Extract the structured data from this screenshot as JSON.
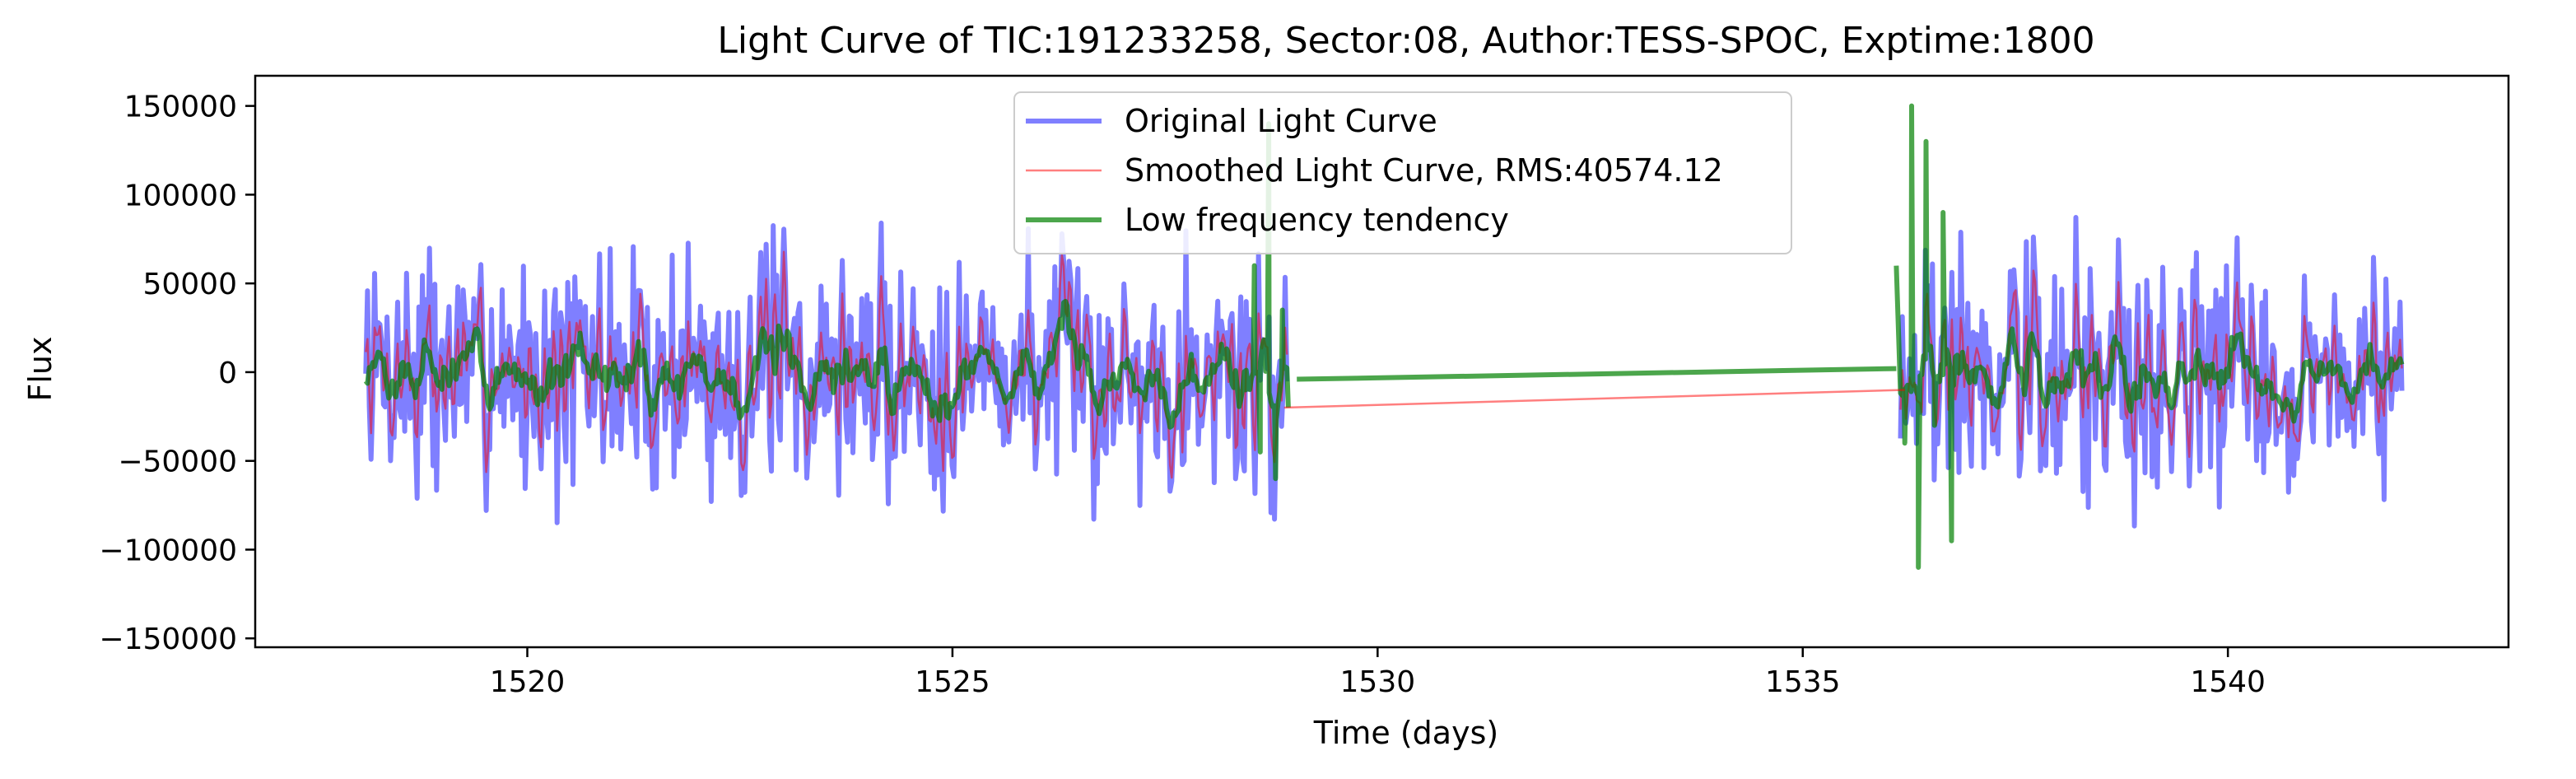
{
  "chart_data": {
    "type": "line",
    "title": "Light Curve of TIC:191233258, Sector:08, Author:TESS-SPOC, Exptime:1800",
    "xlabel": "Time (days)",
    "ylabel": "Flux",
    "xlim": [
      1516.8,
      1543.3
    ],
    "ylim": [
      -155000,
      167000
    ],
    "xticks": [
      1520,
      1525,
      1530,
      1535,
      1540
    ],
    "yticks": [
      -150000,
      -100000,
      -50000,
      0,
      50000,
      100000,
      150000
    ],
    "grid": false,
    "legend_position": "top-center",
    "gap": [
      1529.0,
      1536.1
    ],
    "segments": [
      {
        "start": 1518.1,
        "end": 1528.95,
        "seed": 7
      },
      {
        "start": 1536.15,
        "end": 1542.05,
        "seed": 19
      }
    ],
    "bridge": {
      "series_0_points": [
        [
          1528.9,
          -20000
        ],
        [
          1536.2,
          -10000
        ]
      ],
      "series_2_points": [
        [
          1529.05,
          -4000
        ],
        [
          1536.1,
          2000
        ]
      ]
    },
    "series": [
      {
        "name": "Original Light Curve",
        "color": "#0000ff",
        "opacity": 0.5,
        "style": "thick",
        "amplitude": 48000
      },
      {
        "name": "Smoothed Light Curve, RMS:40574.12",
        "color": "#ff0000",
        "opacity": 0.5,
        "style": "thin",
        "amplitude": 40574.12
      },
      {
        "name": "Low frequency tendency",
        "color": "#008000",
        "opacity": 0.7,
        "style": "thick",
        "amplitude": 22000
      }
    ],
    "edge_spikes": [
      {
        "x": 1528.45,
        "y": -10000
      },
      {
        "x": 1528.55,
        "y": 60000
      },
      {
        "x": 1528.62,
        "y": -45000
      },
      {
        "x": 1528.72,
        "y": 140000
      },
      {
        "x": 1528.8,
        "y": -60000
      },
      {
        "x": 1528.88,
        "y": 35000
      },
      {
        "x": 1528.95,
        "y": -20000
      },
      {
        "x": 1536.1,
        "y": 60000
      },
      {
        "x": 1536.2,
        "y": -40000
      },
      {
        "x": 1536.28,
        "y": 150000
      },
      {
        "x": 1536.36,
        "y": -110000
      },
      {
        "x": 1536.45,
        "y": 130000
      },
      {
        "x": 1536.55,
        "y": -30000
      },
      {
        "x": 1536.65,
        "y": 90000
      },
      {
        "x": 1536.75,
        "y": -95000
      }
    ]
  }
}
